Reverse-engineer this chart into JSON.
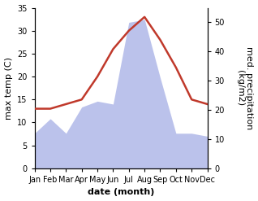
{
  "months": [
    "Jan",
    "Feb",
    "Mar",
    "Apr",
    "May",
    "Jun",
    "Jul",
    "Aug",
    "Sep",
    "Oct",
    "Nov",
    "Dec"
  ],
  "temperature": [
    13,
    13,
    14,
    15,
    20,
    26,
    30,
    33,
    28,
    22,
    15,
    14
  ],
  "precipitation": [
    12,
    17,
    12,
    21,
    23,
    22,
    50,
    51,
    31,
    12,
    12,
    11
  ],
  "temp_color": "#c0392b",
  "precip_color": "#b0b8e8",
  "temp_ylim": [
    0,
    35
  ],
  "precip_ylim": [
    0,
    55
  ],
  "temp_yticks": [
    0,
    5,
    10,
    15,
    20,
    25,
    30,
    35
  ],
  "precip_yticks": [
    0,
    10,
    20,
    30,
    40,
    50
  ],
  "xlabel": "date (month)",
  "ylabel_left": "max temp (C)",
  "ylabel_right": "med. precipitation\n(kg/m2)",
  "bg_color": "#ffffff",
  "temp_linewidth": 1.8,
  "xlabel_fontsize": 8,
  "ylabel_fontsize": 8,
  "tick_fontsize": 7
}
